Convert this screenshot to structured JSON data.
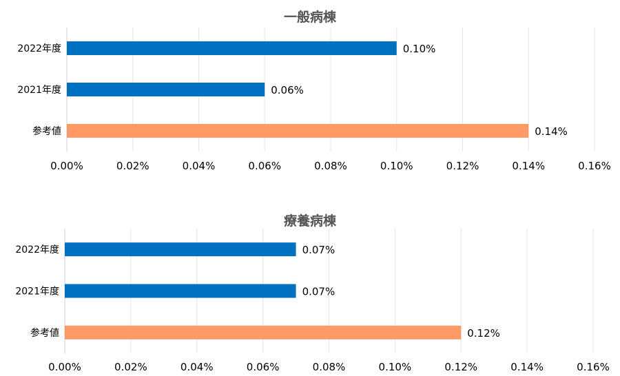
{
  "chart_data": [
    {
      "type": "bar",
      "orientation": "horizontal",
      "title": "一般病棟",
      "categories": [
        "2022年度",
        "2021年度",
        "参考値"
      ],
      "values": [
        0.1,
        0.06,
        0.14
      ],
      "value_labels": [
        "0.10%",
        "0.06%",
        "0.14%"
      ],
      "bar_colors": [
        "#0070C0",
        "#0070C0",
        "#FF9966"
      ],
      "xlim": [
        0,
        0.16
      ],
      "xticks": [
        "0.00%",
        "0.02%",
        "0.04%",
        "0.06%",
        "0.08%",
        "0.10%",
        "0.12%",
        "0.14%",
        "0.16%"
      ],
      "grid": true,
      "legend": "none"
    },
    {
      "type": "bar",
      "orientation": "horizontal",
      "title": "療養病棟",
      "categories": [
        "2022年度",
        "2021年度",
        "参考値"
      ],
      "values": [
        0.07,
        0.07,
        0.12
      ],
      "value_labels": [
        "0.07%",
        "0.07%",
        "0.12%"
      ],
      "bar_colors": [
        "#0070C0",
        "#0070C0",
        "#FF9966"
      ],
      "xlim": [
        0,
        0.16
      ],
      "xticks": [
        "0.00%",
        "0.02%",
        "0.04%",
        "0.06%",
        "0.08%",
        "0.10%",
        "0.12%",
        "0.14%",
        "0.16%"
      ],
      "grid": true,
      "legend": "none"
    }
  ]
}
